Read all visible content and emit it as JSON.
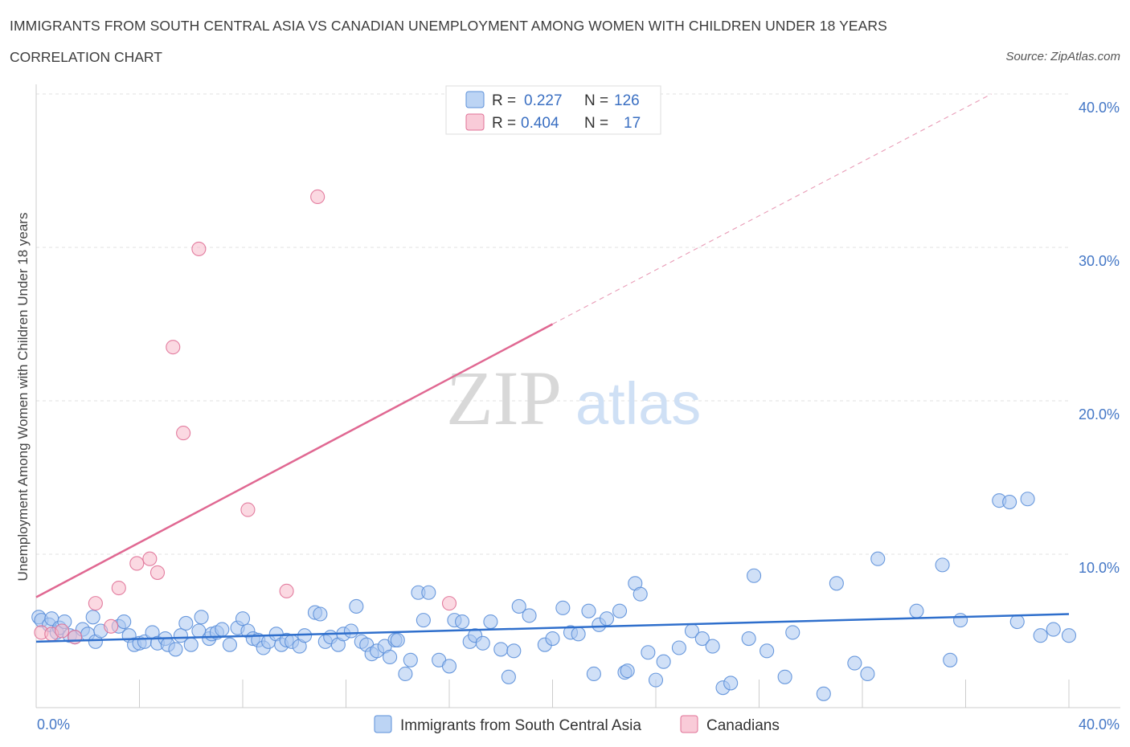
{
  "header": {
    "title": "IMMIGRANTS FROM SOUTH CENTRAL ASIA VS CANADIAN UNEMPLOYMENT AMONG WOMEN WITH CHILDREN UNDER 18 YEARS",
    "subtitle": "CORRELATION CHART",
    "source": "Source: ZipAtlas.com"
  },
  "watermark": {
    "zip": "ZIP",
    "atlas": "atlas"
  },
  "legend": {
    "rows": [
      {
        "r_label": "R =",
        "r_value": "0.227",
        "n_label": "N =",
        "n_value": "126",
        "color": "#a9c7f0"
      },
      {
        "r_label": "R =",
        "r_value": "0.404",
        "n_label": "N =",
        "n_value": "17",
        "color": "#f7b9cb"
      }
    ]
  },
  "chart_data": {
    "type": "scatter",
    "xlabel": "",
    "ylabel": "Unemployment Among Women with Children Under 18 years",
    "xlim": [
      0,
      40
    ],
    "ylim": [
      0,
      40
    ],
    "x_tick_labels": [
      "0.0%",
      "40.0%"
    ],
    "y_tick_labels": [
      "10.0%",
      "20.0%",
      "30.0%",
      "40.0%"
    ],
    "y_ticks": [
      10,
      20,
      30,
      40
    ],
    "grid": true,
    "legend_position": "top-center",
    "series": [
      {
        "name": "Immigrants from South Central Asia",
        "color": "#5b8fd9",
        "fill": "#a9c7f0",
        "trend": {
          "x0": 0,
          "y0": 4.3,
          "x1": 40,
          "y1": 6.1
        },
        "points": [
          [
            0.1,
            5.9
          ],
          [
            0.2,
            5.7
          ],
          [
            0.5,
            5.4
          ],
          [
            0.6,
            5.8
          ],
          [
            0.8,
            4.9
          ],
          [
            0.9,
            5.2
          ],
          [
            1.1,
            5.6
          ],
          [
            1.3,
            4.7
          ],
          [
            1.5,
            4.6
          ],
          [
            1.8,
            5.1
          ],
          [
            2.0,
            4.8
          ],
          [
            2.2,
            5.9
          ],
          [
            2.3,
            4.3
          ],
          [
            2.5,
            5.0
          ],
          [
            3.2,
            5.3
          ],
          [
            3.4,
            5.6
          ],
          [
            3.6,
            4.7
          ],
          [
            3.8,
            4.1
          ],
          [
            4.0,
            4.2
          ],
          [
            4.2,
            4.3
          ],
          [
            4.5,
            4.9
          ],
          [
            4.7,
            4.2
          ],
          [
            5.0,
            4.5
          ],
          [
            5.1,
            4.1
          ],
          [
            5.4,
            3.8
          ],
          [
            5.6,
            4.7
          ],
          [
            5.8,
            5.5
          ],
          [
            6.0,
            4.1
          ],
          [
            6.3,
            5.0
          ],
          [
            6.4,
            5.9
          ],
          [
            6.7,
            4.5
          ],
          [
            6.8,
            4.8
          ],
          [
            7.0,
            4.9
          ],
          [
            7.2,
            5.1
          ],
          [
            7.5,
            4.1
          ],
          [
            7.8,
            5.2
          ],
          [
            8.0,
            5.8
          ],
          [
            8.2,
            5.0
          ],
          [
            8.4,
            4.5
          ],
          [
            8.6,
            4.4
          ],
          [
            8.8,
            3.9
          ],
          [
            9.0,
            4.3
          ],
          [
            9.3,
            4.8
          ],
          [
            9.5,
            4.1
          ],
          [
            9.7,
            4.4
          ],
          [
            9.9,
            4.3
          ],
          [
            10.2,
            4.0
          ],
          [
            10.4,
            4.7
          ],
          [
            10.8,
            6.2
          ],
          [
            11.0,
            6.1
          ],
          [
            11.2,
            4.3
          ],
          [
            11.4,
            4.6
          ],
          [
            11.7,
            4.1
          ],
          [
            11.9,
            4.8
          ],
          [
            12.2,
            5.0
          ],
          [
            12.4,
            6.6
          ],
          [
            12.6,
            4.3
          ],
          [
            12.8,
            4.1
          ],
          [
            13.0,
            3.5
          ],
          [
            13.2,
            3.7
          ],
          [
            13.5,
            4.0
          ],
          [
            13.7,
            3.3
          ],
          [
            13.9,
            4.4
          ],
          [
            14.0,
            4.4
          ],
          [
            14.3,
            2.2
          ],
          [
            14.5,
            3.1
          ],
          [
            14.8,
            7.5
          ],
          [
            15.0,
            5.7
          ],
          [
            15.2,
            7.5
          ],
          [
            15.6,
            3.1
          ],
          [
            16.0,
            2.7
          ],
          [
            16.2,
            5.7
          ],
          [
            16.5,
            5.6
          ],
          [
            16.8,
            4.3
          ],
          [
            17.0,
            4.7
          ],
          [
            17.3,
            4.2
          ],
          [
            17.6,
            5.6
          ],
          [
            18.0,
            3.8
          ],
          [
            18.3,
            2.0
          ],
          [
            18.5,
            3.7
          ],
          [
            18.7,
            6.6
          ],
          [
            19.1,
            6.0
          ],
          [
            19.7,
            4.1
          ],
          [
            20.0,
            4.5
          ],
          [
            20.4,
            6.5
          ],
          [
            20.7,
            4.9
          ],
          [
            21.0,
            4.8
          ],
          [
            21.4,
            6.3
          ],
          [
            21.6,
            2.2
          ],
          [
            21.8,
            5.4
          ],
          [
            22.1,
            5.8
          ],
          [
            22.6,
            6.3
          ],
          [
            22.8,
            2.3
          ],
          [
            22.9,
            2.4
          ],
          [
            23.2,
            8.1
          ],
          [
            23.4,
            7.4
          ],
          [
            23.7,
            3.6
          ],
          [
            24.0,
            1.8
          ],
          [
            24.3,
            3.0
          ],
          [
            24.9,
            3.9
          ],
          [
            25.4,
            5.0
          ],
          [
            25.8,
            4.5
          ],
          [
            26.2,
            4.0
          ],
          [
            26.6,
            1.3
          ],
          [
            26.9,
            1.6
          ],
          [
            27.6,
            4.5
          ],
          [
            27.8,
            8.6
          ],
          [
            28.3,
            3.7
          ],
          [
            29.0,
            2.0
          ],
          [
            29.3,
            4.9
          ],
          [
            30.5,
            0.9
          ],
          [
            31.0,
            8.1
          ],
          [
            31.7,
            2.9
          ],
          [
            32.2,
            2.2
          ],
          [
            32.6,
            9.7
          ],
          [
            34.1,
            6.3
          ],
          [
            35.1,
            9.3
          ],
          [
            35.4,
            3.1
          ],
          [
            35.8,
            5.7
          ],
          [
            37.3,
            13.5
          ],
          [
            37.7,
            13.4
          ],
          [
            38.0,
            5.6
          ],
          [
            38.4,
            13.6
          ],
          [
            38.9,
            4.7
          ],
          [
            39.4,
            5.1
          ],
          [
            40.0,
            4.7
          ]
        ]
      },
      {
        "name": "Canadians",
        "color": "#e07096",
        "fill": "#f7b9cb",
        "trend": {
          "x0": 0,
          "y0": 7.2,
          "x1": 20,
          "y1": 25.0,
          "dash_x1": 37,
          "dash_y1": 40.0
        },
        "points": [
          [
            0.2,
            4.9
          ],
          [
            0.6,
            4.8
          ],
          [
            1.5,
            4.6
          ],
          [
            2.3,
            6.8
          ],
          [
            2.9,
            5.3
          ],
          [
            3.2,
            7.8
          ],
          [
            3.9,
            9.4
          ],
          [
            4.4,
            9.7
          ],
          [
            4.7,
            8.8
          ],
          [
            5.3,
            23.5
          ],
          [
            5.7,
            17.9
          ],
          [
            6.3,
            29.9
          ],
          [
            8.2,
            12.9
          ],
          [
            9.7,
            7.6
          ],
          [
            10.9,
            33.3
          ],
          [
            16.0,
            6.8
          ],
          [
            1.0,
            5.0
          ]
        ]
      }
    ]
  },
  "bottom_legend": {
    "items": [
      {
        "label": "Immigrants from South Central Asia",
        "color": "#a9c7f0"
      },
      {
        "label": "Canadians",
        "color": "#f7b9cb"
      }
    ]
  }
}
